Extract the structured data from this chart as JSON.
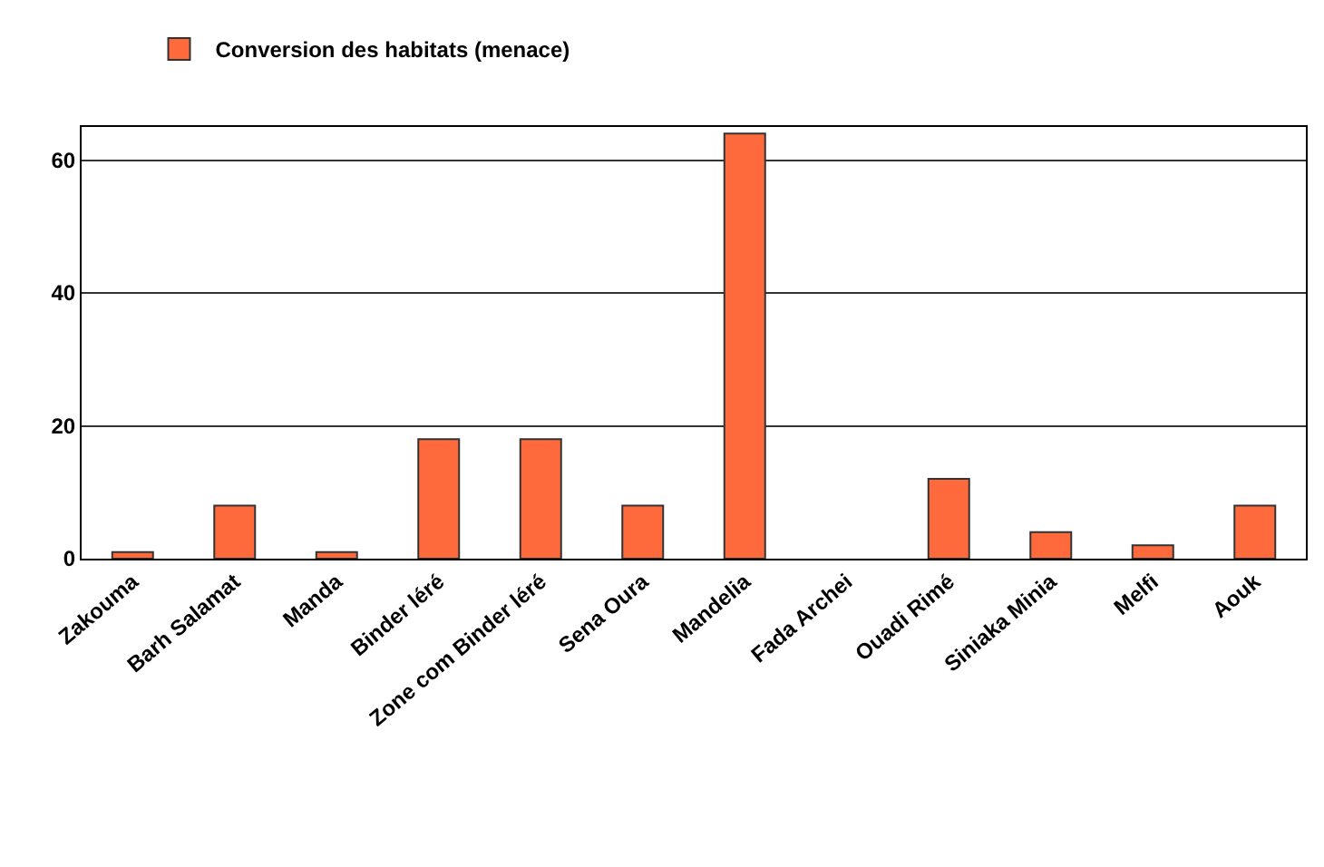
{
  "chart_data": {
    "type": "bar",
    "categories": [
      "Zakouma",
      "Barh Salamat",
      "Manda",
      "Binder léré",
      "Zone com Binder léré",
      "Sena Oura",
      "Mandelia",
      "Fada Archei",
      "Ouadi Rimé",
      "Siniaka Minia",
      "Melfi",
      "Aouk"
    ],
    "series": [
      {
        "name": "Conversion des habitats (menace)",
        "color": "#ff6a3d",
        "values": [
          1,
          8,
          1,
          18,
          18,
          8,
          64,
          0,
          12,
          4,
          2,
          8
        ]
      }
    ],
    "ylim": [
      0,
      65
    ],
    "yticks": [
      0,
      20,
      40,
      60
    ],
    "grid": "y",
    "legend": "top left"
  }
}
